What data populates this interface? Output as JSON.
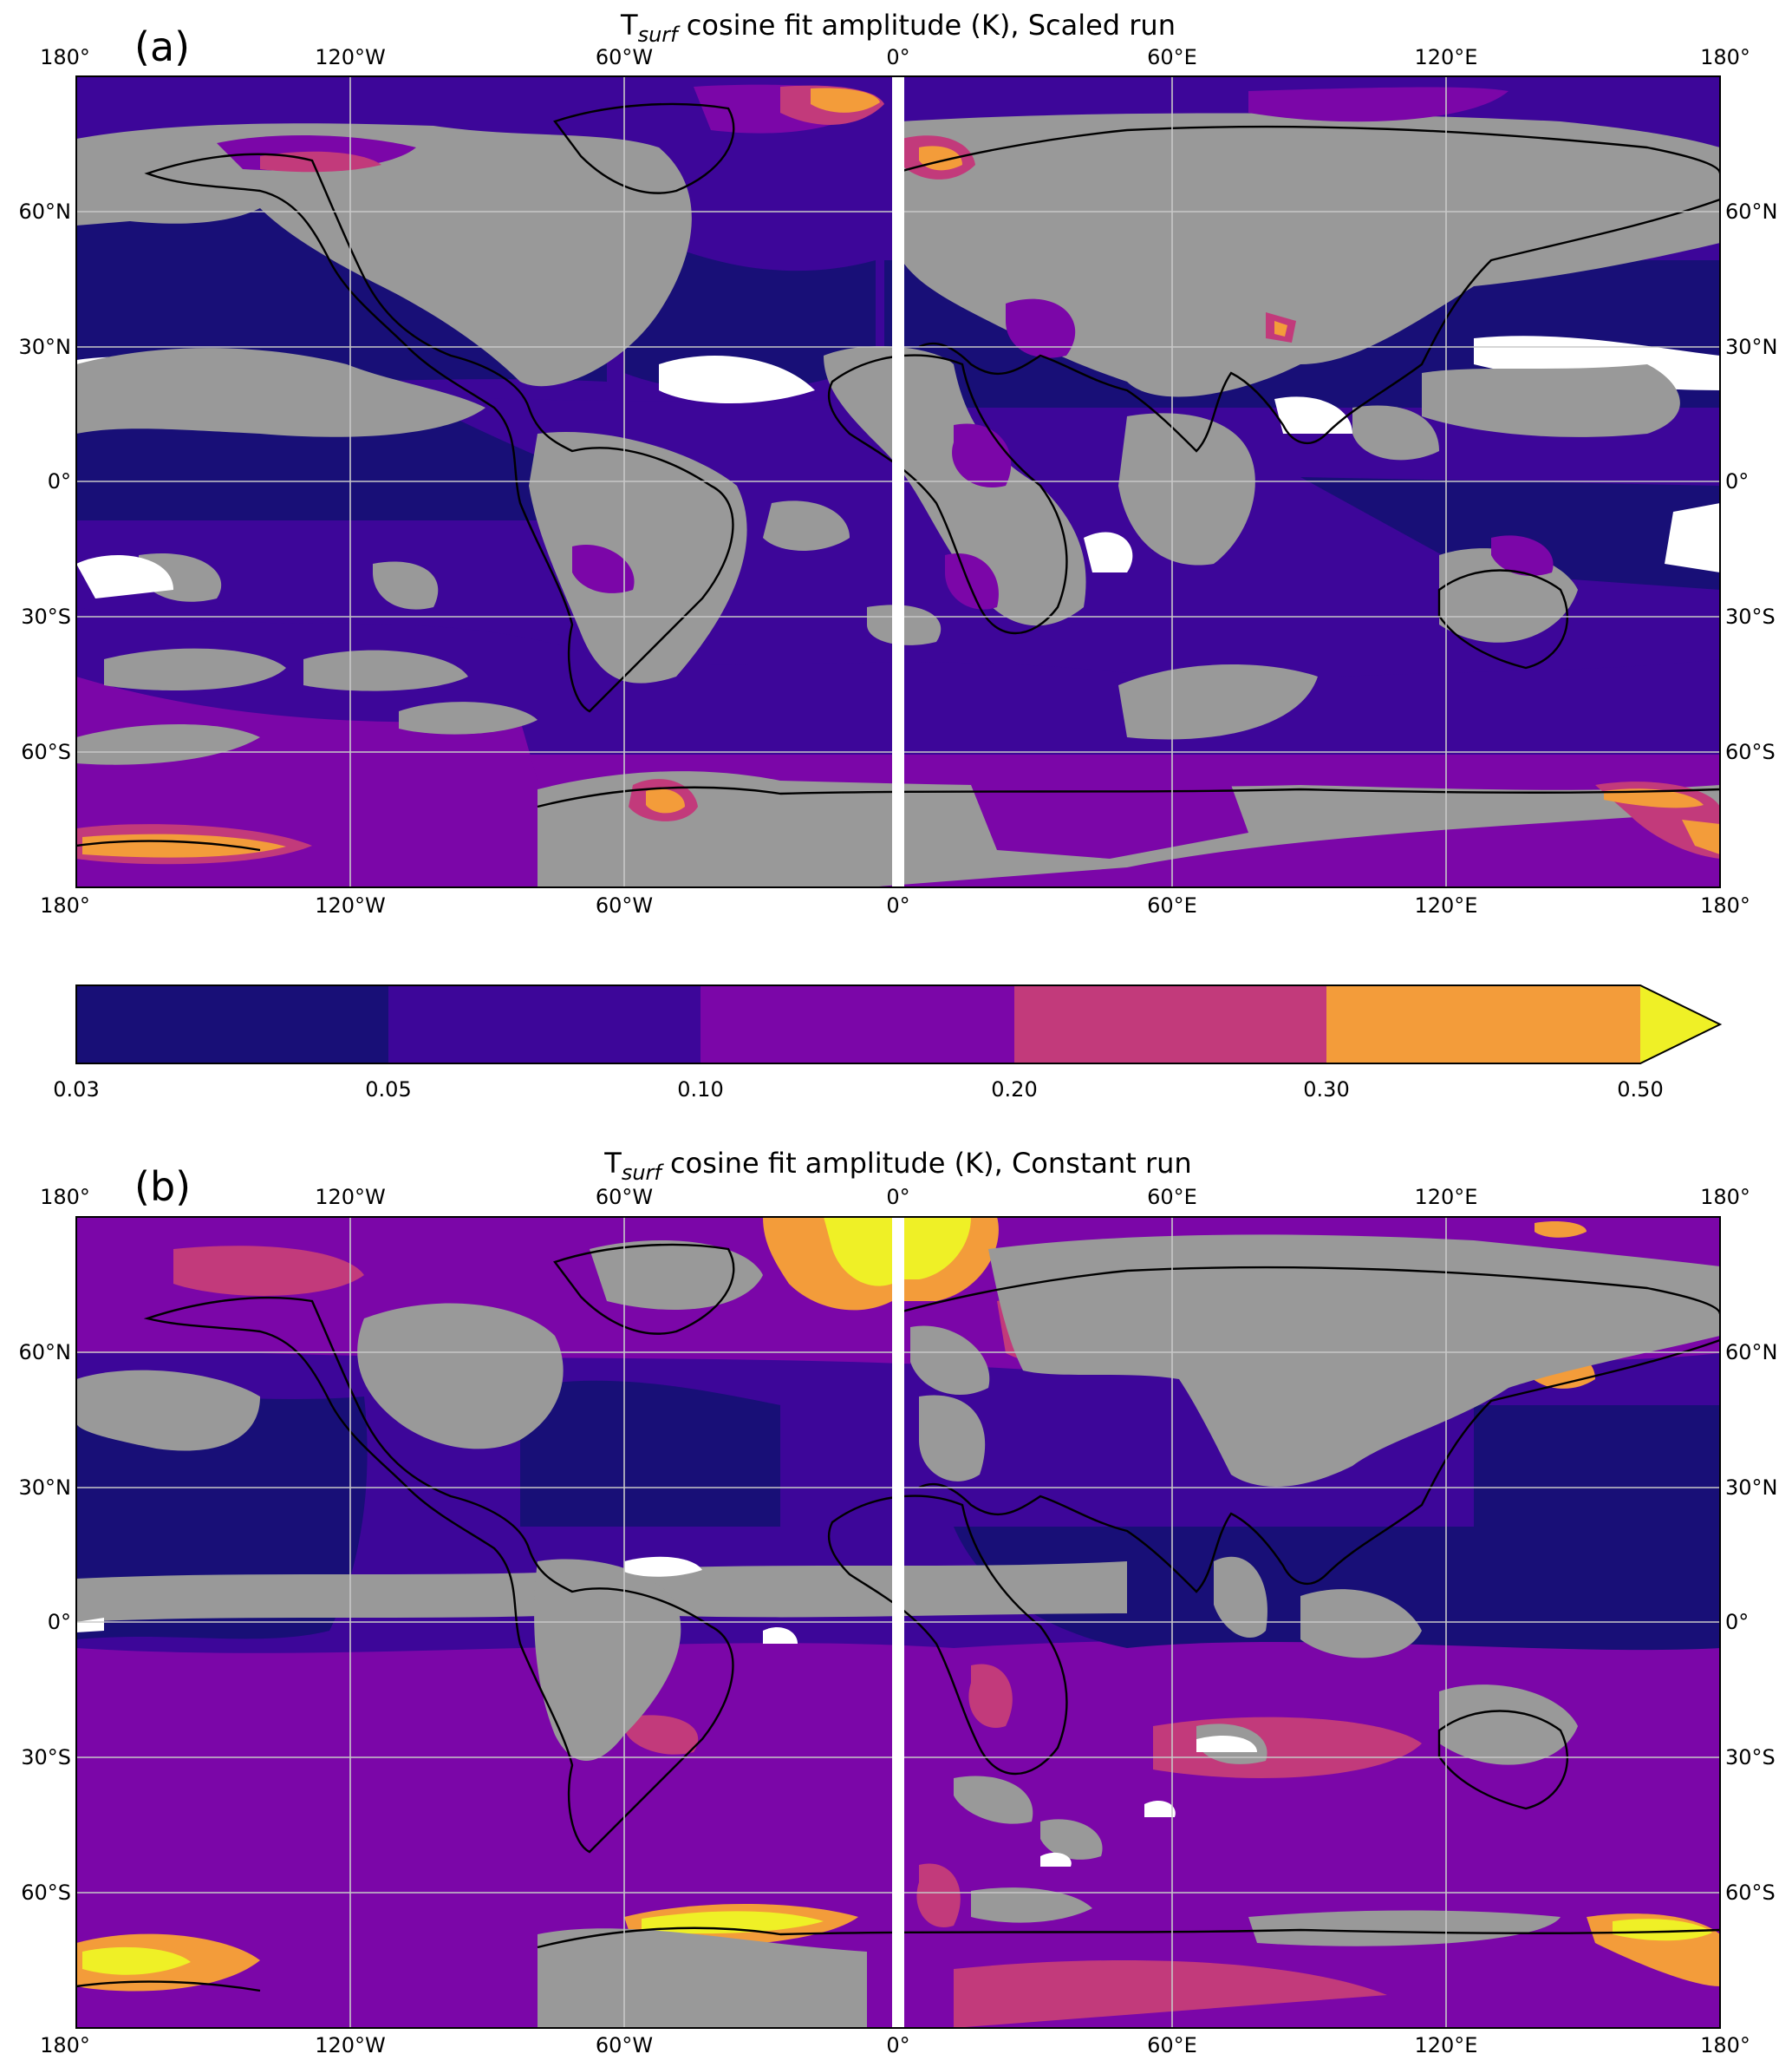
{
  "figure": {
    "panel_a": {
      "panel_label": "(a)",
      "title_prefix": "T",
      "title_sub": "surf",
      "title_rest": " cosine fit amplitude (K), Scaled run"
    },
    "panel_b": {
      "panel_label": "(b)",
      "title_prefix": "T",
      "title_sub": "surf",
      "title_rest": " cosine fit amplitude (K), Constant run"
    },
    "lon_labels": [
      "180°",
      "120°W",
      "60°W",
      "0°",
      "60°E",
      "120°E",
      "180°"
    ],
    "lat_labels": [
      "60°N",
      "30°N",
      "0°",
      "30°S",
      "60°S"
    ],
    "colorbar": {
      "tick_labels": [
        "0.03",
        "0.05",
        "0.10",
        "0.20",
        "0.30",
        "0.50"
      ],
      "bins": [
        "#180f77",
        "#3d0699",
        "#7b06a8",
        "#c23a7b",
        "#f39c3a"
      ],
      "extend_color": "#eff026",
      "extend": "max"
    },
    "colors": {
      "land_mask": "#999999",
      "below_range": "#ffffff",
      "coastline": "#000000",
      "gridline": "#c8c8c8"
    }
  }
}
